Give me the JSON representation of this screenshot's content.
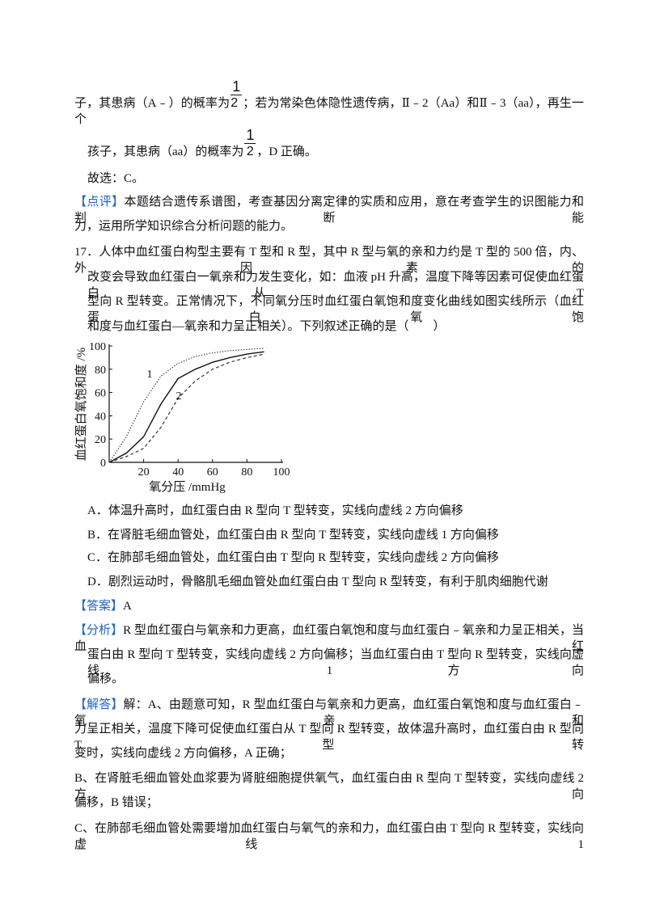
{
  "continuation": {
    "line1": {
      "before": "子，其患病（A﹣）的概率为",
      "fraction": {
        "numerator": "1",
        "denominator": "2"
      },
      "after": "；若为常染色体隐性遗传病，Ⅱ﹣2（Aa）和Ⅱ﹣3（aa），再生一个"
    },
    "line2": {
      "before": "孩子，其患病（aa）的概率为",
      "fraction": {
        "numerator": "1",
        "denominator": "2"
      },
      "after": "，D 正确。"
    },
    "choice": "故选：C。",
    "comment": {
      "tag": "【点评】",
      "lines": [
        "本题结合遗传系谱图，考查基因分离定律的实质和应用，意在考查学生的识图能力和判断能",
        "力，运用所学知识综合分析问题的能力。"
      ]
    }
  },
  "question": {
    "number": "17．",
    "lines": [
      "人体中血红蛋白构型主要有 T 型和 R 型，其中 R 型与氧的亲和力约是 T 型的 500 倍，内、外因素的",
      "改变会导致血红蛋白一氧亲和力发生变化，如：血液 pH 升高，温度下降等因素可促使血红蛋白从 T",
      "型向 R 型转变。正常情况下，不同氧分压时血红蛋白氧饱和度变化曲线如图实线所示（血红蛋白氧饱",
      "和度与血红蛋白—氧亲和力呈正相关）。下列叙述正确的是（　　）"
    ],
    "figure": {
      "type": "line",
      "x_label": "氧分压 /mmHg",
      "y_label": "血红蛋白氧饱和度 /%",
      "xlim": [
        0,
        100
      ],
      "ylim": [
        0,
        100
      ],
      "xticks": [
        20,
        40,
        60,
        80,
        100
      ],
      "yticks": [
        0,
        20,
        40,
        60,
        80,
        100
      ],
      "x": [
        0,
        10,
        20,
        30,
        40,
        50,
        60,
        70,
        80,
        90
      ],
      "series": [
        {
          "name": "1",
          "style": "dotted",
          "color": "#222222",
          "values": [
            0,
            22,
            52,
            74,
            85,
            91,
            94,
            96,
            97,
            98
          ]
        },
        {
          "style": "solid",
          "color": "#111111",
          "values": [
            0,
            8,
            22,
            50,
            72,
            80,
            86,
            90,
            93,
            95
          ]
        },
        {
          "name": "2",
          "style": "dashed",
          "color": "#222222",
          "values": [
            0,
            5,
            12,
            30,
            55,
            70,
            80,
            86,
            90,
            93
          ]
        }
      ]
    },
    "options": [
      "A．体温升高时，血红蛋白由 R 型向 T 型转变，实线向虚线 2 方向偏移",
      "B．在肾脏毛细血管处，血红蛋白由 R 型向 T 型转变，实线向虚线 1 方向偏移",
      "C．在肺部毛细血管处，血红蛋白由 T 型向 R 型转变，实线向虚线 2 方向偏移",
      "D．剧烈运动时，骨骼肌毛细血管处血红蛋白由 T 型向 R 型转变，有利于肌肉细胞代谢"
    ],
    "answer": {
      "tag": "【答案】",
      "text": "A"
    },
    "analysis": {
      "tag": "【分析】",
      "lines": [
        "R 型血红蛋白与氧亲和力更高，血红蛋白氧饱和度与血红蛋白﹣氧亲和力呈正相关，当血红",
        "蛋白由 R 型向 T 型转变，实线向虚线 2 方向偏移；当血红蛋白由 T 型向 R 型转变，实线向虚线 1 方向",
        "偏移。"
      ]
    },
    "solution": {
      "tag": "【解答】",
      "lines": [
        "解：A、由题意可知，R 型血红蛋白与氧亲和力更高，血红蛋白氧饱和度与血红蛋白﹣氧亲和",
        "力呈正相关，温度下降可促使血红蛋白从 T 型向 R 型转变，故体温升高时，血红蛋白由 R 型向 T 型转",
        "变时，实线向虚线 2 方向偏移，A 正确；",
        "B、在肾脏毛细血管处血浆要为肾脏细胞提供氧气，血红蛋白由 R 型向 T 型转变，实线向虚线 2 方向",
        "偏移，B 错误；",
        "C、在肺部毛细血管处需要增加血红蛋白与氧气的亲和力，血红蛋白由 T 型向 R 型转变，实线向虚线 1"
      ]
    }
  }
}
